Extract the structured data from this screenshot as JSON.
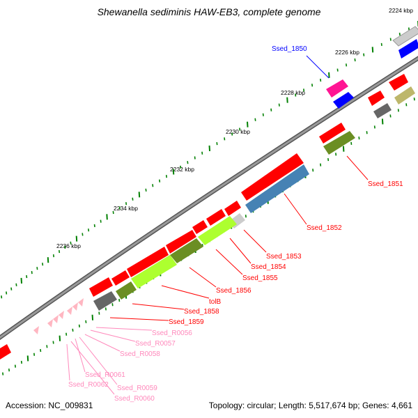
{
  "title": "Shewanella sediminis HAW-EB3, complete genome",
  "accession": "Accession: NC_009831",
  "summary": "Topology: circular; Length: 5,517,674 bp; Genes: 4,661",
  "ruler_labels": [
    "2224 kbp",
    "2226 kbp",
    "2228 kbp",
    "2230 kbp",
    "2232 kbp",
    "2234 kbp",
    "2236 kbp"
  ],
  "colors": {
    "backbone": "#888888",
    "cds_red": "#ff0000",
    "olive": "#6b8e23",
    "lime": "#adff2f",
    "steel": "#4682b4",
    "gray": "#666666",
    "light_gray": "#cccccc",
    "pink": "#ffb6c1",
    "blue": "#0000ff",
    "magenta": "#ff1493",
    "khaki": "#bdb76b",
    "tick": "#008000"
  },
  "gene_labels": [
    {
      "text": "Ssed_1850",
      "color": "#0000ff"
    },
    {
      "text": "Ssed_1851",
      "color": "#ff0000"
    },
    {
      "text": "Ssed_1852",
      "color": "#ff0000"
    },
    {
      "text": "Ssed_1853",
      "color": "#ff0000"
    },
    {
      "text": "Ssed_1854",
      "color": "#ff0000"
    },
    {
      "text": "Ssed_1855",
      "color": "#ff0000"
    },
    {
      "text": "Ssed_1856",
      "color": "#ff0000"
    },
    {
      "text": "tolB",
      "color": "#ff0000"
    },
    {
      "text": "Ssed_1858",
      "color": "#ff0000"
    },
    {
      "text": "Ssed_1859",
      "color": "#ff0000"
    },
    {
      "text": "Ssed_R0056",
      "color": "#ff88bb"
    },
    {
      "text": "Ssed_R0057",
      "color": "#ff88bb"
    },
    {
      "text": "Ssed_R0058",
      "color": "#ff88bb"
    },
    {
      "text": "Ssed_R0061",
      "color": "#ff88bb"
    },
    {
      "text": "Ssed_R0062",
      "color": "#ff88bb"
    },
    {
      "text": "Ssed_R0059",
      "color": "#ff88bb"
    },
    {
      "text": "Ssed_R0060",
      "color": "#ff88bb"
    }
  ]
}
